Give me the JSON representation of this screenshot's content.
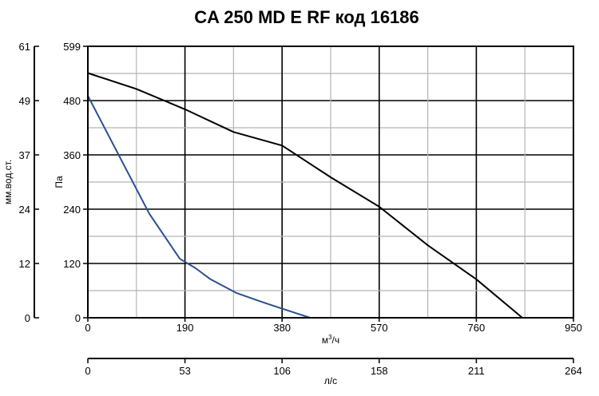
{
  "chart_data": {
    "type": "line",
    "title": "CA 250 MD E RF код 16186",
    "x_axis": {
      "label_main": "м",
      "label_sup": "3",
      "label_suffix": "/ч",
      "ticks": [
        "0",
        "190",
        "380",
        "570",
        "760",
        "950"
      ],
      "range": [
        0,
        950
      ]
    },
    "x2_axis": {
      "label": "л/с",
      "ticks": [
        "0",
        "53",
        "106",
        "158",
        "211",
        "264"
      ],
      "range": [
        0,
        264
      ]
    },
    "y_axis": {
      "label": "Па",
      "ticks": [
        "0",
        "120",
        "240",
        "360",
        "480",
        "599"
      ],
      "range": [
        0,
        599
      ]
    },
    "y2_axis": {
      "label": "мм.вод.ст.",
      "ticks": [
        "0",
        "12",
        "24",
        "37",
        "49",
        "61"
      ],
      "range": [
        0,
        61
      ]
    },
    "grid": true,
    "series": [
      {
        "color": "#000000",
        "x": [
          0,
          95,
          190,
          285,
          380,
          475,
          570,
          665,
          760,
          850
        ],
        "y": [
          540,
          505,
          460,
          410,
          380,
          310,
          245,
          160,
          85,
          0
        ]
      },
      {
        "color": "#2c4f8f",
        "x": [
          0,
          60,
          120,
          180,
          210,
          240,
          290,
          340,
          380,
          435
        ],
        "y": [
          490,
          360,
          230,
          130,
          110,
          85,
          55,
          35,
          20,
          0
        ]
      }
    ]
  }
}
